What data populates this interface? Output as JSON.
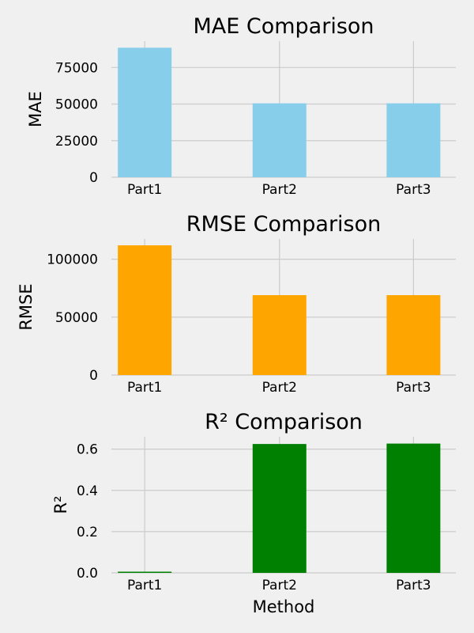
{
  "chart_data": [
    {
      "type": "bar",
      "title": "MAE Comparison",
      "ylabel": "MAE",
      "xlabel": "",
      "categories": [
        "Part1",
        "Part2",
        "Part3"
      ],
      "values": [
        88500,
        50500,
        50500
      ],
      "ylim": [
        0,
        93000
      ],
      "yticks": [
        0,
        25000,
        50000,
        75000
      ],
      "color": "#87ceeb",
      "grid": true
    },
    {
      "type": "bar",
      "title": "RMSE Comparison",
      "ylabel": "RMSE",
      "xlabel": "",
      "categories": [
        "Part1",
        "Part2",
        "Part3"
      ],
      "values": [
        112000,
        69000,
        69000
      ],
      "ylim": [
        0,
        117500
      ],
      "yticks": [
        0,
        50000,
        100000
      ],
      "color": "#ffa500",
      "grid": true
    },
    {
      "type": "bar",
      "title": "R² Comparison",
      "ylabel": "R²",
      "xlabel": "Method",
      "categories": [
        "Part1",
        "Part2",
        "Part3"
      ],
      "values": [
        0.005,
        0.625,
        0.627
      ],
      "ylim": [
        0,
        0.66
      ],
      "yticks": [
        0.0,
        0.2,
        0.4,
        0.6
      ],
      "color": "#008000",
      "grid": true
    }
  ]
}
